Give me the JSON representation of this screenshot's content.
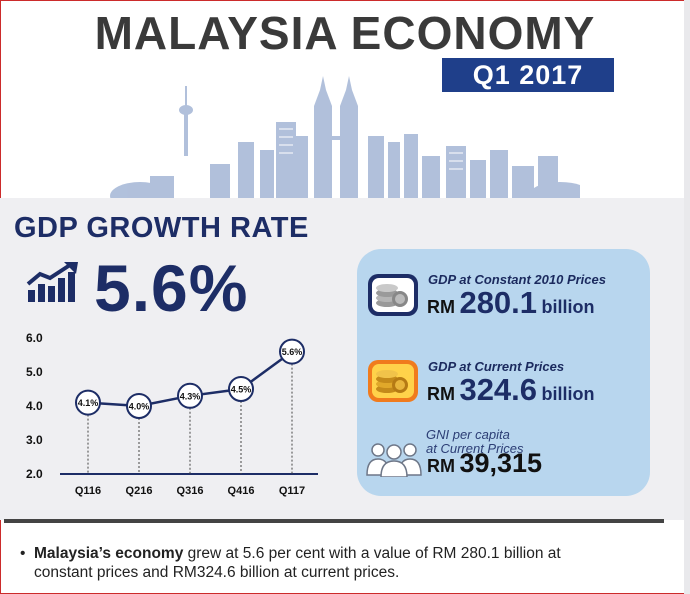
{
  "header": {
    "title": "MALAYSIA ECONOMY",
    "period": "Q1 2017"
  },
  "gdp_growth": {
    "title": "GDP GROWTH RATE",
    "rate": "5.6%"
  },
  "info": {
    "constant": {
      "label": "GDP at Constant 2010 Prices",
      "prefix": "RM",
      "value": "280.1",
      "unit": "billion"
    },
    "current": {
      "label": "GDP at Current Prices",
      "prefix": "RM",
      "value": "324.6",
      "unit": "billion"
    },
    "gni": {
      "label_line1": "GNI per capita",
      "label_line2": "at Current Prices",
      "prefix": "RM",
      "value": "39,315"
    }
  },
  "summary": {
    "lead": "Malaysia’s economy",
    "line1_rest": " grew at 5.6 per cent with a value of RM 280.1 billion at",
    "line2": "constant prices and RM324.6 billion at current prices."
  },
  "colors": {
    "navy": "#1d2d66",
    "badge": "#1f3f8a",
    "info_bg": "#b8d6ee",
    "skyline": "#a9bad8"
  },
  "icons": {
    "trend": "trend-up-icon",
    "coins_constant": "coins-icon",
    "coins_current": "coins-icon",
    "people": "people-icon"
  },
  "chart_data": {
    "type": "line",
    "categories": [
      "Q116",
      "Q216",
      "Q316",
      "Q416",
      "Q117"
    ],
    "values": [
      4.1,
      4.0,
      4.3,
      4.5,
      5.6
    ],
    "data_labels": [
      "4.1%",
      "4.0%",
      "4.3%",
      "4.5%",
      "5.6%"
    ],
    "ylim": [
      2.0,
      6.0
    ],
    "yticks": [
      "2.0",
      "3.0",
      "4.0",
      "5.0",
      "6.0"
    ],
    "grid": false,
    "title": "",
    "xlabel": "",
    "ylabel": ""
  }
}
